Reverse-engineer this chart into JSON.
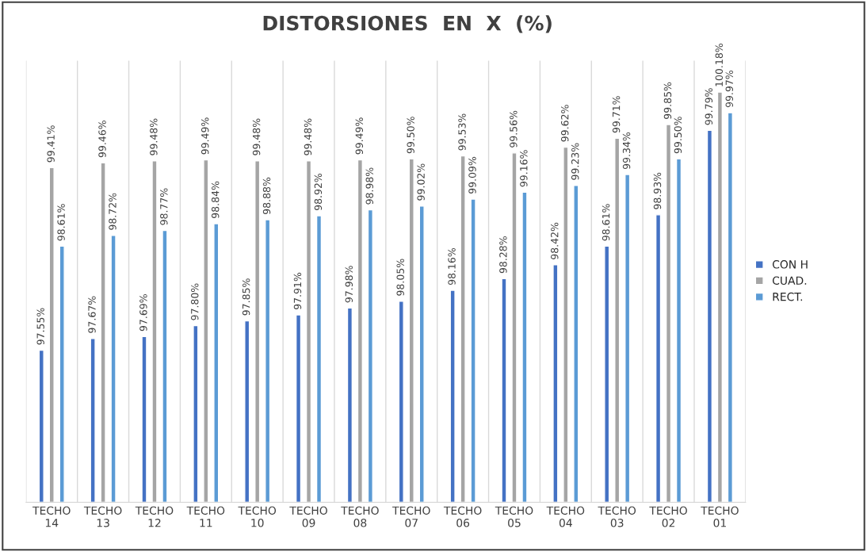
{
  "chart_data": {
    "type": "bar",
    "title": "DISTORSIONES  EN  X  (%)",
    "categories": [
      "TECHO\n14",
      "TECHO\n13",
      "TECHO\n12",
      "TECHO\n11",
      "TECHO\n10",
      "TECHO\n09",
      "TECHO\n08",
      "TECHO\n07",
      "TECHO\n06",
      "TECHO\n05",
      "TECHO\n04",
      "TECHO\n03",
      "TECHO\n02",
      "TECHO\n01"
    ],
    "series": [
      {
        "name": "CON H",
        "color": "#4472c4",
        "values": [
          97.55,
          97.67,
          97.69,
          97.8,
          97.85,
          97.91,
          97.98,
          98.05,
          98.16,
          98.28,
          98.42,
          98.61,
          98.93,
          99.79
        ],
        "value_labels": [
          "97.55%",
          "97.67%",
          "97.69%",
          "97.80%",
          "97.85%",
          "97.91%",
          "97.98%",
          "98.05%",
          "98.16%",
          "98.28%",
          "98.42%",
          "98.61%",
          "98.93%",
          "99.79%"
        ]
      },
      {
        "name": "CUAD.",
        "color": "#a5a5a5",
        "values": [
          99.41,
          99.46,
          99.48,
          99.49,
          99.48,
          99.48,
          99.49,
          99.5,
          99.53,
          99.56,
          99.62,
          99.71,
          99.85,
          100.18
        ],
        "value_labels": [
          "99.41%",
          "99.46%",
          "99.48%",
          "99.49%",
          "99.48%",
          "99.48%",
          "99.49%",
          "99.50%",
          "99.53%",
          "99.56%",
          "99.62%",
          "99.71%",
          "99.85%",
          "100.18%"
        ]
      },
      {
        "name": "RECT.",
        "color": "#5b9bd5",
        "values": [
          98.61,
          98.72,
          98.77,
          98.84,
          98.88,
          98.92,
          98.98,
          99.02,
          99.09,
          99.16,
          99.23,
          99.34,
          99.5,
          99.97
        ],
        "value_labels": [
          "98.61%",
          "98.72%",
          "98.77%",
          "98.84%",
          "98.88%",
          "98.92%",
          "98.98%",
          "99.02%",
          "99.09%",
          "99.16%",
          "99.23%",
          "99.34%",
          "99.50%",
          "99.97%"
        ]
      }
    ],
    "ylim": [
      96,
      100.5
    ],
    "tick_labels": "x",
    "grid": "x",
    "legend": "right"
  }
}
